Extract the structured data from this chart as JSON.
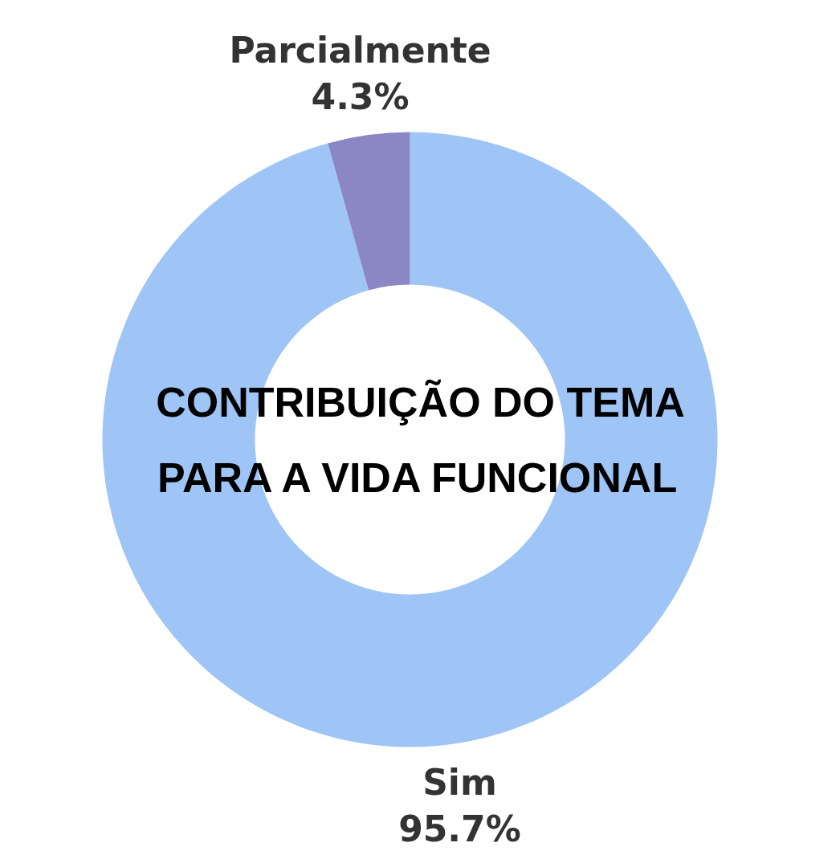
{
  "chart_data": {
    "type": "donut",
    "title": "CONTRIBUIÇÃO DO TEMA PARA A VIDA FUNCIONAL",
    "categories": [
      "Sim",
      "Parcialmente"
    ],
    "values": [
      95.7,
      4.3
    ],
    "colors": [
      "#9ec5f5",
      "#8b87c4"
    ],
    "value_labels": [
      "95.7%",
      "4.3%"
    ]
  }
}
